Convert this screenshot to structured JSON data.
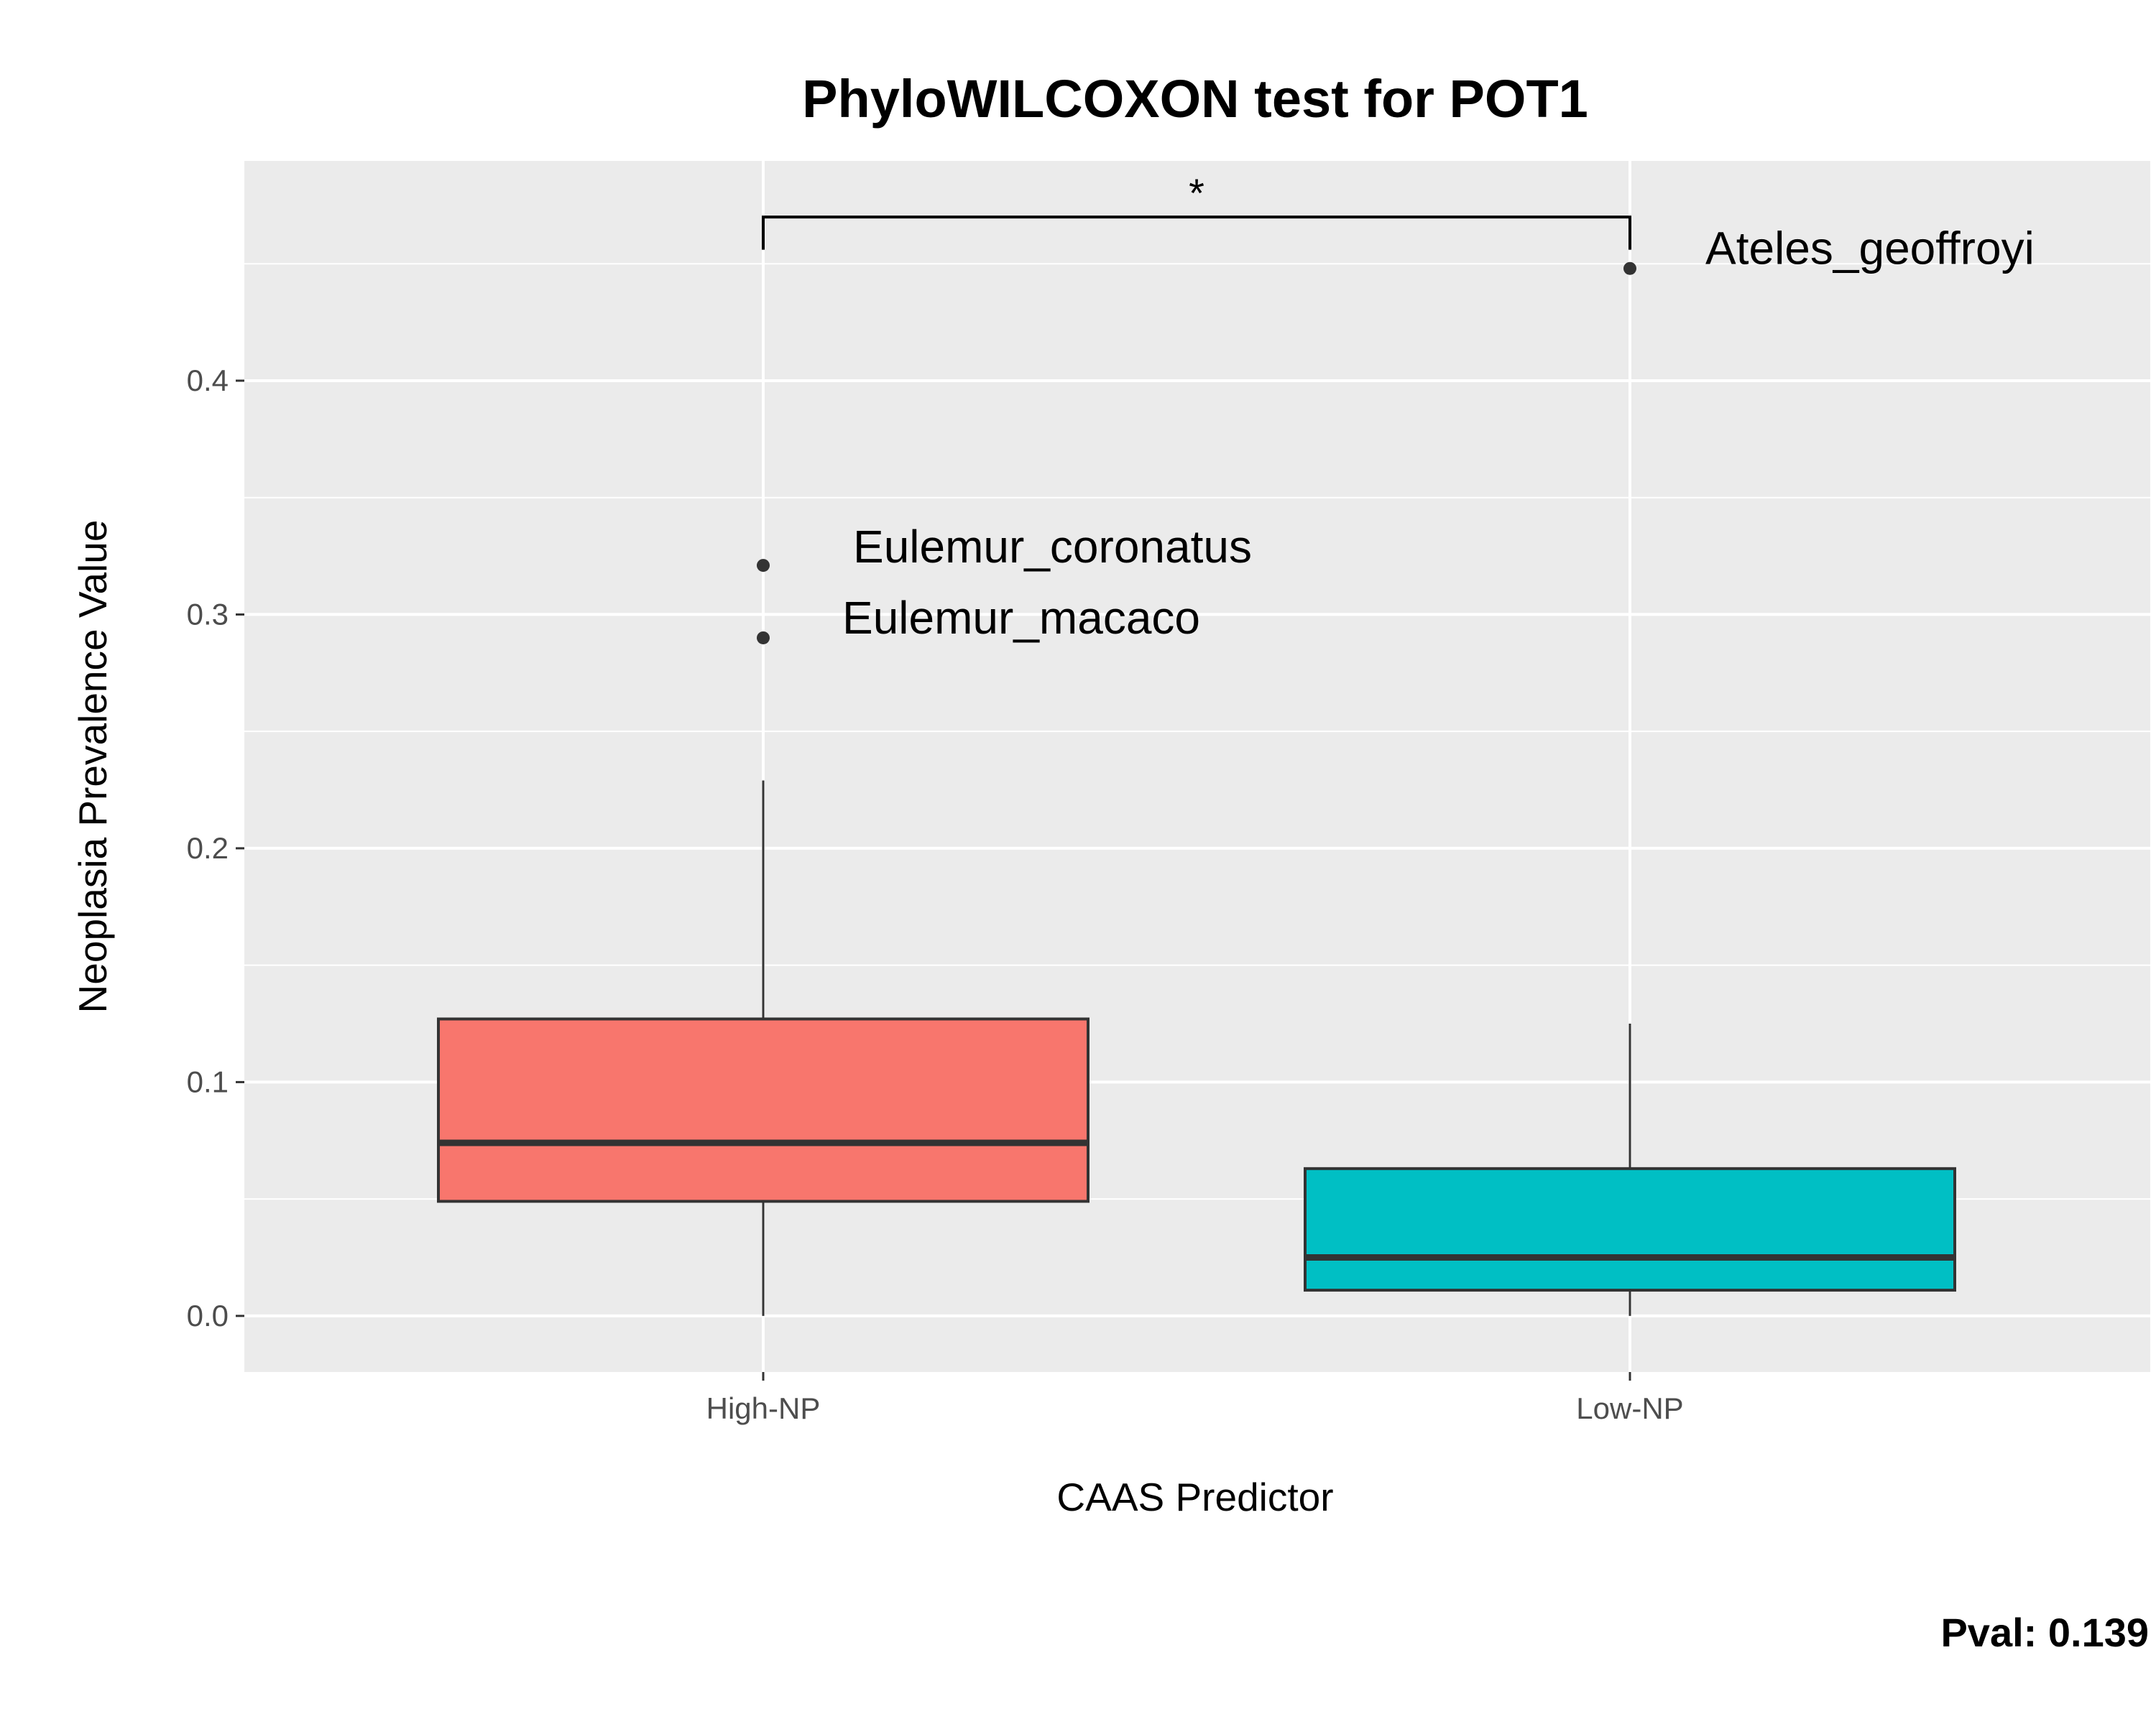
{
  "chart_data": {
    "type": "boxplot",
    "title": "PhyloWILCOXON test for POT1",
    "xlabel": "CAAS Predictor",
    "ylabel": "Neoplasia Prevalence Value",
    "ylim": [
      -0.024,
      0.494
    ],
    "yticks": [
      0.0,
      0.1,
      0.2,
      0.3,
      0.4
    ],
    "ytick_labels": [
      "0.0",
      "0.1",
      "0.2",
      "0.3",
      "0.4"
    ],
    "grid": true,
    "legend": "none",
    "groups": [
      {
        "category": "High-NP",
        "color": "#F8766D",
        "whisker_low": 0.0,
        "q1": 0.049,
        "median": 0.074,
        "q3": 0.127,
        "whisker_high": 0.229,
        "outliers": [
          {
            "value": 0.321,
            "label": "Eulemur_coronatus"
          },
          {
            "value": 0.29,
            "label": "Eulemur_macaco"
          }
        ]
      },
      {
        "category": "Low-NP",
        "color": "#00BFC4",
        "whisker_low": 0.0,
        "q1": 0.011,
        "median": 0.025,
        "q3": 0.063,
        "whisker_high": 0.125,
        "outliers": [
          {
            "value": 0.448,
            "label": "Ateles_geoffroyi"
          }
        ]
      }
    ],
    "significance": {
      "label": "*",
      "from": "High-NP",
      "to": "Low-NP",
      "y": 0.47,
      "tick_bottom": 0.456
    },
    "pval_text": "Pval:  0.139"
  }
}
